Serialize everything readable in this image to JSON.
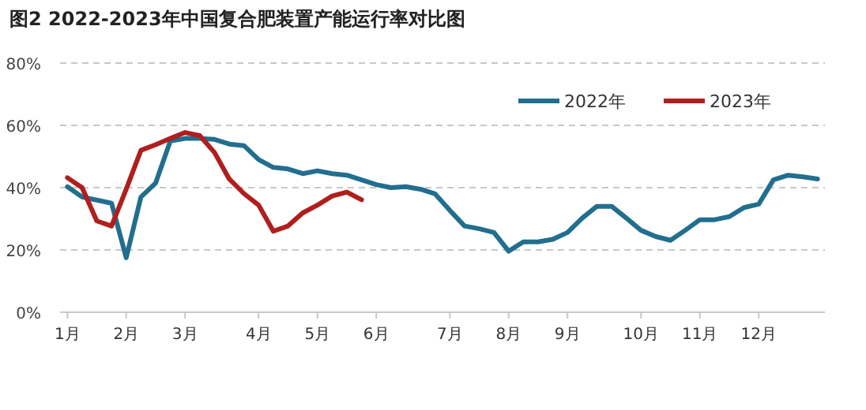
{
  "chart_data": {
    "type": "line",
    "title": "图2 2022-2023年中国复合肥装置产能运行率对比图",
    "categories": [
      "1月",
      null,
      null,
      null,
      "2月",
      null,
      null,
      null,
      "3月",
      null,
      null,
      null,
      null,
      "4月",
      null,
      null,
      null,
      "5月",
      null,
      null,
      null,
      "6月",
      null,
      null,
      null,
      null,
      "7月",
      null,
      null,
      null,
      "8月",
      null,
      null,
      null,
      "9月",
      null,
      null,
      null,
      null,
      "10月",
      null,
      null,
      null,
      "11月",
      null,
      null,
      null,
      "12月",
      null,
      null,
      null,
      null
    ],
    "series": [
      {
        "name": "2022年",
        "color": "#226e8e",
        "values": [
          40.3,
          37,
          36,
          35,
          17.5,
          37,
          41.5,
          55,
          55.8,
          55.8,
          55.5,
          54,
          53.5,
          49,
          46.5,
          46,
          44.5,
          45.4,
          44.5,
          44,
          42.5,
          41,
          40,
          40.3,
          39.5,
          38,
          32.7,
          27.7,
          26.8,
          25.6,
          19.6,
          22.6,
          22.6,
          23.4,
          25.6,
          30.2,
          34,
          34,
          30.2,
          26.3,
          24.3,
          23.1,
          26.3,
          29.7,
          29.7,
          30.7,
          33.6,
          34.7,
          42.5,
          44,
          43.5,
          42.8
        ]
      },
      {
        "name": "2023年",
        "color": "#b01e1e",
        "values": [
          43.2,
          40,
          29.3,
          27.7,
          39.5,
          52,
          53.8,
          55.8,
          57.7,
          56.7,
          51.3,
          42.8,
          38.1,
          34.4,
          26,
          27.7,
          31.9,
          34.4,
          37.3,
          38.6,
          36.1,
          null,
          null,
          null,
          null,
          null,
          null,
          null,
          null,
          null,
          null,
          null,
          null,
          null,
          null,
          null,
          null,
          null,
          null,
          null,
          null,
          null,
          null,
          null,
          null,
          null,
          null,
          null,
          null,
          null,
          null,
          null
        ]
      }
    ],
    "ylim": [
      0,
      80
    ],
    "yticks": [
      {
        "value": 0,
        "label": "0%"
      },
      {
        "value": 20,
        "label": "20%"
      },
      {
        "value": 40,
        "label": "40%"
      },
      {
        "value": 60,
        "label": "60%"
      },
      {
        "value": 80,
        "label": "80%"
      }
    ],
    "grid": "y",
    "legend": "top right"
  }
}
